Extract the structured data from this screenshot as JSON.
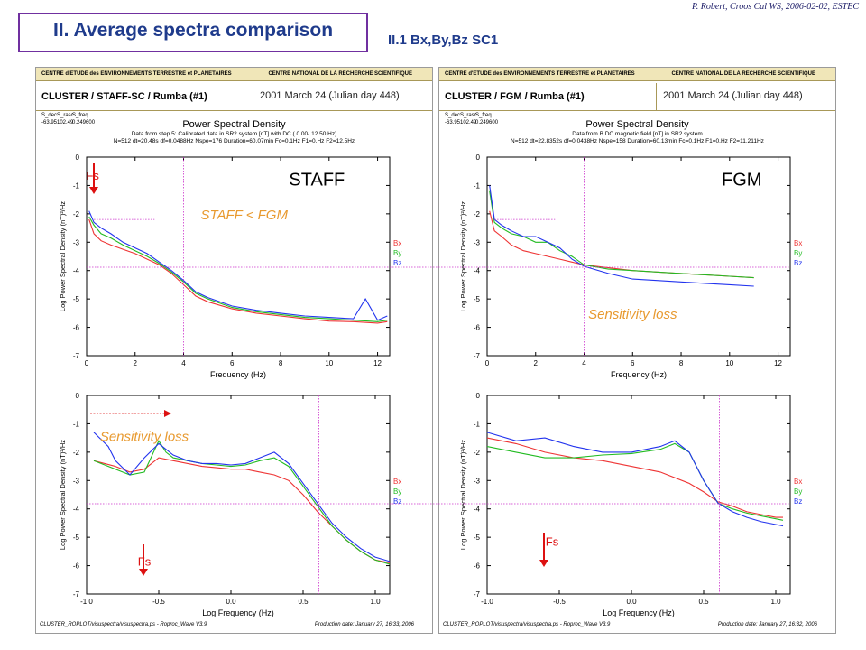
{
  "header": {
    "title": "II. Average spectra comparison",
    "subtitle": "II.1  Bx,By,Bz SC1",
    "author": "P. Robert, Croos Cal WS, 2006-02-02, ESTEC"
  },
  "panels": [
    {
      "header_left": "CENTRE d'ETUDE des ENVIRONNEMENTS TERRESTRE et PLANETAIRES",
      "header_right": "CENTRE NATIONAL DE LA RECHERCHE SCIENTIFIQUE",
      "instrument": "CLUSTER / STAFF-SC / Rumba  (#1)",
      "date": "2001 March 24  (Julian day 448)",
      "params_labels": [
        "S_dec",
        "S_rasc",
        "S_freq"
      ],
      "params_values": [
        "-63.95",
        "102.49",
        "0.249600"
      ],
      "plot_title": "Power Spectral Density",
      "info_lines": [
        "Data from step 5: Calibrated data in SR2 system [nT] with DC  (  0.00-  12.50 Hz)",
        "N=512 dt=20.48s df=0.0488Hz Nspe=176 Duration=60.07min Fc=0.1Hz F1=0.Hz F2=12.5Hz"
      ],
      "footer_left": "CLUSTER_ROPLOT/visuspectra/visuspectra.ps  -  Roproc_Wave V3.9",
      "footer_right": "Production date: January 27, 16:33, 2006"
    },
    {
      "header_left": "CENTRE d'ETUDE des ENVIRONNEMENTS TERRESTRE et PLANETAIRES",
      "header_right": "CENTRE NATIONAL DE LA RECHERCHE SCIENTIFIQUE",
      "instrument": "CLUSTER / FGM / Rumba (#1)",
      "date": "2001 March 24  (Julian day 448)",
      "params_labels": [
        "S_dec",
        "S_rasc",
        "S_freq"
      ],
      "params_values": [
        "-63.95",
        "102.49",
        "0.249600"
      ],
      "plot_title": "Power Spectral Density",
      "info_lines": [
        "Data from B DC magnetic field [nT] in SR2 system",
        "N=512 dt=22.8352s df=0.0438Hz Nspe=158 Duration=60.13min Fc=0.1Hz F1=0.Hz F2=11.211Hz"
      ],
      "footer_left": "CLUSTER_ROPLOT/visuspectra/visuspectra.ps  -  Roproc_Wave V3.9",
      "footer_right": "Production date: January 27, 16:32, 2006"
    }
  ],
  "colors": {
    "Bx": "#ee3333",
    "By": "#22bb22",
    "Bz": "#2233ee",
    "annotation": "#e89a30",
    "guide": "#cc33cc",
    "arrow": "#dd1111"
  },
  "chart_data": [
    {
      "id": "staff-linear",
      "type": "line",
      "xlabel": "Frequency (Hz)",
      "ylabel": "Log Power Spectral Density (nT)²/Hz",
      "xlim": [
        0,
        12.5
      ],
      "ylim": [
        -7,
        0
      ],
      "xticks": [
        0,
        2,
        4,
        6,
        8,
        10,
        12
      ],
      "yticks": [
        0,
        -1,
        -2,
        -3,
        -4,
        -5,
        -6,
        -7
      ],
      "legend": [
        "Bx",
        "By",
        "Bz"
      ],
      "series": [
        {
          "name": "Bx",
          "x": [
            0.1,
            0.3,
            0.6,
            1.0,
            1.5,
            2.0,
            2.5,
            3.0,
            3.5,
            4.0,
            4.5,
            5.0,
            6.0,
            7.0,
            8.0,
            9.0,
            10.0,
            11.0,
            12.0,
            12.4
          ],
          "y": [
            -2.2,
            -2.7,
            -2.95,
            -3.1,
            -3.25,
            -3.4,
            -3.6,
            -3.8,
            -4.1,
            -4.5,
            -4.9,
            -5.1,
            -5.35,
            -5.5,
            -5.6,
            -5.7,
            -5.78,
            -5.8,
            -5.85,
            -5.8
          ]
        },
        {
          "name": "By",
          "x": [
            0.1,
            0.3,
            0.6,
            1.0,
            1.5,
            2.0,
            2.5,
            3.0,
            3.5,
            4.0,
            4.5,
            5.0,
            6.0,
            7.0,
            8.0,
            9.0,
            10.0,
            11.0,
            12.0,
            12.4
          ],
          "y": [
            -2.1,
            -2.4,
            -2.7,
            -2.85,
            -3.1,
            -3.3,
            -3.5,
            -3.75,
            -4.05,
            -4.4,
            -4.8,
            -5.0,
            -5.3,
            -5.45,
            -5.55,
            -5.65,
            -5.7,
            -5.75,
            -5.8,
            -5.75
          ]
        },
        {
          "name": "Bz",
          "x": [
            0.1,
            0.3,
            0.6,
            1.0,
            1.5,
            2.0,
            2.5,
            3.0,
            3.5,
            4.0,
            4.5,
            5.0,
            6.0,
            7.0,
            8.0,
            9.0,
            10.0,
            11.0,
            11.5,
            12.0,
            12.4
          ],
          "y": [
            -1.9,
            -2.3,
            -2.5,
            -2.7,
            -3.0,
            -3.2,
            -3.4,
            -3.7,
            -4.0,
            -4.35,
            -4.75,
            -4.95,
            -5.25,
            -5.4,
            -5.5,
            -5.6,
            -5.65,
            -5.7,
            -5.0,
            -5.75,
            -5.6
          ]
        }
      ],
      "annotations": [
        {
          "text": "Fs",
          "x": 0.25,
          "y": -0.8
        },
        {
          "text": "STAFF",
          "x": 9.5,
          "y": -1.0
        },
        {
          "text": "STAFF < FGM",
          "x": 6.5,
          "y": -2.2
        }
      ]
    },
    {
      "id": "fgm-linear",
      "type": "line",
      "xlabel": "Frequency (Hz)",
      "ylabel": "Log Power Spectral Density (nT)²/Hz",
      "xlim": [
        0,
        12.5
      ],
      "ylim": [
        -7,
        0
      ],
      "xticks": [
        0,
        2,
        4,
        6,
        8,
        10,
        12
      ],
      "yticks": [
        0,
        -1,
        -2,
        -3,
        -4,
        -5,
        -6,
        -7
      ],
      "legend": [
        "Bx",
        "By",
        "Bz"
      ],
      "series": [
        {
          "name": "Bx",
          "x": [
            0.1,
            0.3,
            0.6,
            1.0,
            1.5,
            2.0,
            2.5,
            3.0,
            3.5,
            4.0,
            5.0,
            6.0,
            7.0,
            8.0,
            9.0,
            10.0,
            11.0
          ],
          "y": [
            -1.9,
            -2.6,
            -2.8,
            -3.1,
            -3.3,
            -3.4,
            -3.5,
            -3.6,
            -3.7,
            -3.8,
            -3.9,
            -4.0,
            -4.05,
            -4.1,
            -4.15,
            -4.2,
            -4.25
          ]
        },
        {
          "name": "By",
          "x": [
            0.1,
            0.3,
            0.6,
            1.0,
            1.5,
            2.0,
            2.5,
            3.0,
            3.5,
            4.0,
            5.0,
            6.0,
            7.0,
            8.0,
            9.0,
            10.0,
            11.0
          ],
          "y": [
            -1.2,
            -2.3,
            -2.5,
            -2.7,
            -2.8,
            -3.0,
            -3.0,
            -3.3,
            -3.5,
            -3.8,
            -3.95,
            -4.0,
            -4.05,
            -4.1,
            -4.15,
            -4.2,
            -4.25
          ]
        },
        {
          "name": "Bz",
          "x": [
            0.1,
            0.3,
            0.6,
            1.0,
            1.5,
            2.0,
            2.5,
            3.0,
            3.5,
            4.0,
            5.0,
            6.0,
            7.0,
            8.0,
            9.0,
            10.0,
            11.0
          ],
          "y": [
            -1.0,
            -2.2,
            -2.4,
            -2.6,
            -2.8,
            -2.8,
            -3.0,
            -3.2,
            -3.6,
            -3.85,
            -4.1,
            -4.3,
            -4.35,
            -4.4,
            -4.45,
            -4.5,
            -4.55
          ]
        }
      ],
      "annotations": [
        {
          "text": "FGM",
          "x": 10.5,
          "y": -1.0
        },
        {
          "text": "Sensitivity loss",
          "x": 6.0,
          "y": -5.7
        }
      ]
    },
    {
      "id": "staff-log",
      "type": "line",
      "xlabel": "Log Frequency (Hz)",
      "ylabel": "Log Power Spectral Density (nT)²/Hz",
      "xlim": [
        -1.0,
        1.1
      ],
      "ylim": [
        -7,
        0
      ],
      "xticks": [
        -1.0,
        -0.5,
        0.0,
        0.5,
        1.0
      ],
      "yticks": [
        0,
        -1,
        -2,
        -3,
        -4,
        -5,
        -6,
        -7
      ],
      "legend": [
        "Bx",
        "By",
        "Bz"
      ],
      "series": [
        {
          "name": "Bx",
          "x": [
            -0.95,
            -0.8,
            -0.7,
            -0.6,
            -0.5,
            -0.4,
            -0.3,
            -0.2,
            -0.1,
            0.0,
            0.1,
            0.2,
            0.3,
            0.4,
            0.5,
            0.6,
            0.7,
            0.8,
            0.9,
            1.0,
            1.1
          ],
          "y": [
            -2.3,
            -2.5,
            -2.7,
            -2.6,
            -2.2,
            -2.3,
            -2.4,
            -2.5,
            -2.55,
            -2.6,
            -2.6,
            -2.7,
            -2.8,
            -3.0,
            -3.5,
            -4.1,
            -4.6,
            -5.1,
            -5.5,
            -5.8,
            -5.9
          ]
        },
        {
          "name": "By",
          "x": [
            -0.95,
            -0.8,
            -0.7,
            -0.6,
            -0.5,
            -0.45,
            -0.4,
            -0.3,
            -0.2,
            -0.1,
            0.0,
            0.1,
            0.2,
            0.3,
            0.4,
            0.5,
            0.6,
            0.7,
            0.8,
            0.9,
            1.0,
            1.1
          ],
          "y": [
            -2.3,
            -2.6,
            -2.8,
            -2.7,
            -1.6,
            -2.0,
            -2.2,
            -2.3,
            -2.4,
            -2.45,
            -2.5,
            -2.45,
            -2.3,
            -2.2,
            -2.5,
            -3.2,
            -3.9,
            -4.6,
            -5.1,
            -5.5,
            -5.8,
            -5.95
          ]
        },
        {
          "name": "Bz",
          "x": [
            -0.95,
            -0.85,
            -0.8,
            -0.7,
            -0.6,
            -0.5,
            -0.4,
            -0.3,
            -0.2,
            -0.1,
            0.0,
            0.1,
            0.2,
            0.3,
            0.4,
            0.5,
            0.6,
            0.7,
            0.8,
            0.9,
            1.0,
            1.1
          ],
          "y": [
            -1.3,
            -1.8,
            -2.3,
            -2.8,
            -2.2,
            -1.7,
            -2.1,
            -2.3,
            -2.4,
            -2.4,
            -2.45,
            -2.4,
            -2.2,
            -2.0,
            -2.4,
            -3.1,
            -3.8,
            -4.5,
            -5.0,
            -5.4,
            -5.7,
            -5.85
          ]
        }
      ],
      "annotations": [
        {
          "text": "Sensitivity loss",
          "x": -0.6,
          "y": -1.6
        },
        {
          "text": "Fs",
          "x": -0.6,
          "y": -6.0
        }
      ]
    },
    {
      "id": "fgm-log",
      "type": "line",
      "xlabel": "Log Frequency (Hz)",
      "ylabel": "Log Power Spectral Density (nT)²/Hz",
      "xlim": [
        -1.0,
        1.1
      ],
      "ylim": [
        -7,
        0
      ],
      "xticks": [
        -1.0,
        -0.5,
        0.0,
        0.5,
        1.0
      ],
      "yticks": [
        0,
        -1,
        -2,
        -3,
        -4,
        -5,
        -6,
        -7
      ],
      "legend": [
        "Bx",
        "By",
        "Bz"
      ],
      "series": [
        {
          "name": "Bx",
          "x": [
            -1.0,
            -0.8,
            -0.6,
            -0.4,
            -0.2,
            0.0,
            0.2,
            0.4,
            0.5,
            0.6,
            0.7,
            0.8,
            0.9,
            1.0,
            1.05
          ],
          "y": [
            -1.5,
            -1.7,
            -2.0,
            -2.2,
            -2.3,
            -2.5,
            -2.7,
            -3.1,
            -3.4,
            -3.75,
            -3.9,
            -4.1,
            -4.2,
            -4.3,
            -4.3
          ]
        },
        {
          "name": "By",
          "x": [
            -1.0,
            -0.8,
            -0.6,
            -0.4,
            -0.2,
            0.0,
            0.2,
            0.3,
            0.4,
            0.5,
            0.6,
            0.7,
            0.8,
            0.9,
            1.0,
            1.05
          ],
          "y": [
            -1.8,
            -2.0,
            -2.2,
            -2.2,
            -2.1,
            -2.05,
            -1.9,
            -1.7,
            -2.0,
            -3.0,
            -3.8,
            -4.0,
            -4.15,
            -4.25,
            -4.35,
            -4.4
          ]
        },
        {
          "name": "Bz",
          "x": [
            -1.0,
            -0.8,
            -0.6,
            -0.4,
            -0.2,
            0.0,
            0.2,
            0.3,
            0.4,
            0.5,
            0.6,
            0.7,
            0.8,
            0.9,
            1.0,
            1.05
          ],
          "y": [
            -1.3,
            -1.6,
            -1.5,
            -1.8,
            -2.0,
            -2.0,
            -1.8,
            -1.6,
            -2.0,
            -3.0,
            -3.8,
            -4.1,
            -4.3,
            -4.45,
            -4.55,
            -4.6
          ]
        }
      ],
      "annotations": [
        {
          "text": "Fs",
          "x": -0.55,
          "y": -5.3
        }
      ]
    }
  ]
}
